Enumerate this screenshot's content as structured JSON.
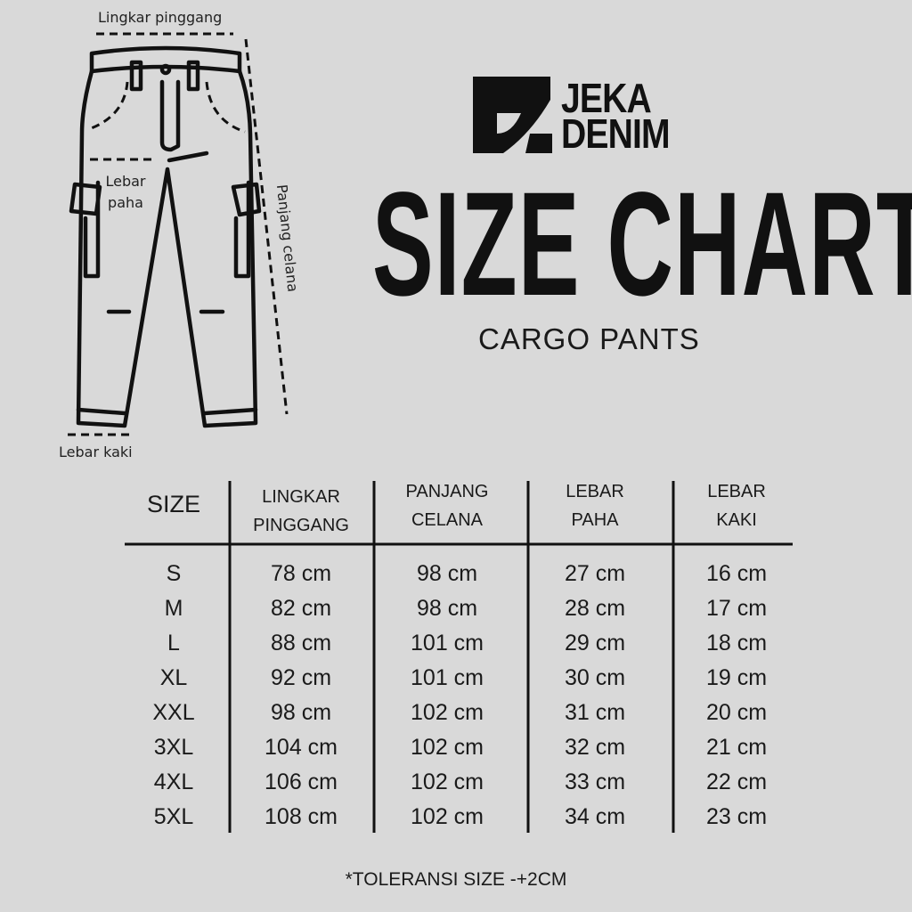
{
  "diagram": {
    "labels": {
      "waist": "Lingkar pinggang",
      "thigh_line1": "Lebar",
      "thigh_line2": "paha",
      "length": "Panjang celana",
      "leg": "Lebar kaki"
    }
  },
  "brand": {
    "line1": "JEKA",
    "line2": "DENIM"
  },
  "header": {
    "title": "SIZE CHART",
    "subtitle": "CARGO PANTS"
  },
  "table": {
    "columns": [
      {
        "line1": "SIZE",
        "line2": ""
      },
      {
        "line1": "LINGKAR",
        "line2": "PINGGANG"
      },
      {
        "line1": "PANJANG",
        "line2": "CELANA"
      },
      {
        "line1": "LEBAR",
        "line2": "PAHA"
      },
      {
        "line1": "LEBAR",
        "line2": "KAKI"
      }
    ],
    "rows": [
      [
        "S",
        "78 cm",
        "98 cm",
        "27 cm",
        "16 cm"
      ],
      [
        "M",
        "82 cm",
        "98 cm",
        "28 cm",
        "17 cm"
      ],
      [
        "L",
        "88 cm",
        "101 cm",
        "29 cm",
        "18 cm"
      ],
      [
        "XL",
        "92 cm",
        "101 cm",
        "30 cm",
        "19 cm"
      ],
      [
        "XXL",
        "98 cm",
        "102 cm",
        "31 cm",
        "20 cm"
      ],
      [
        "3XL",
        "104 cm",
        "102 cm",
        "32 cm",
        "21 cm"
      ],
      [
        "4XL",
        "106 cm",
        "102 cm",
        "33 cm",
        "22 cm"
      ],
      [
        "5XL",
        "108 cm",
        "102 cm",
        "34 cm",
        "23 cm"
      ]
    ]
  },
  "footnote": "*TOLERANSI SIZE -+2CM",
  "colors": {
    "background": "#d9d9d9",
    "ink": "#111111"
  }
}
